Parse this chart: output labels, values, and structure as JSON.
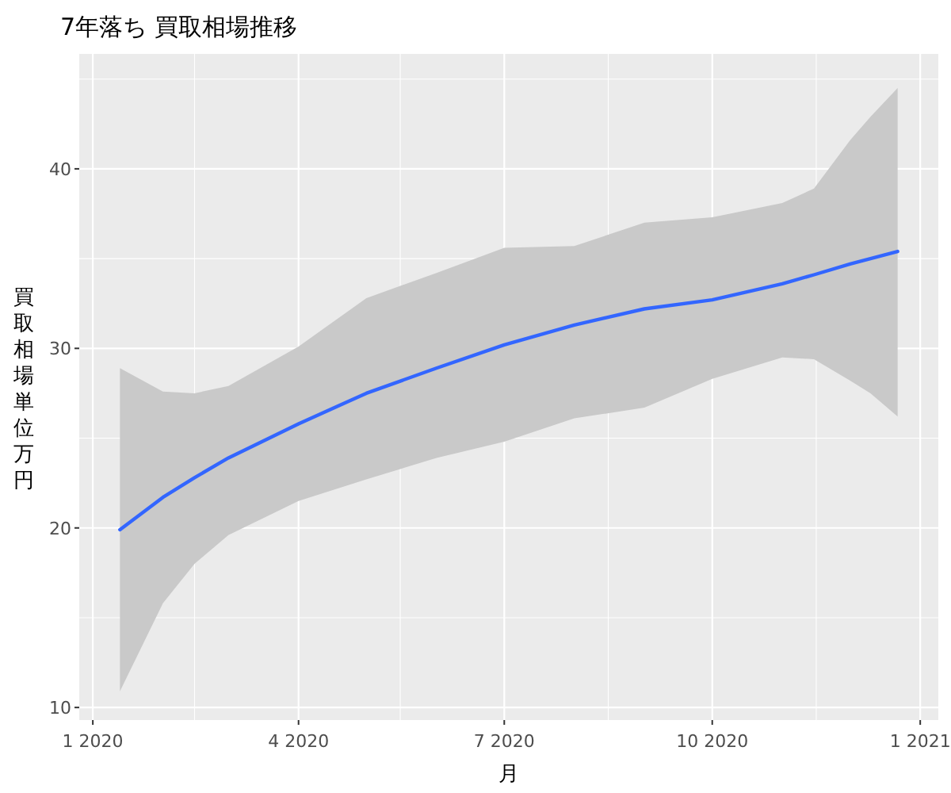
{
  "chart_data": {
    "type": "line",
    "title": "7年落ち 買取相場推移",
    "xlabel": "月",
    "ylabel": "買取相場単位万円",
    "xlim": [
      "2019-12-26",
      "2021-01-09"
    ],
    "ylim": [
      9.3,
      46.4
    ],
    "xticks": [
      {
        "value": "2020-01-01",
        "label": "1 2020"
      },
      {
        "value": "2020-02-15",
        "label": null
      },
      {
        "value": "2020-04-01",
        "label": "4 2020"
      },
      {
        "value": "2020-05-16",
        "label": null
      },
      {
        "value": "2020-07-01",
        "label": "7 2020"
      },
      {
        "value": "2020-08-16",
        "label": null
      },
      {
        "value": "2020-10-01",
        "label": "10 2020"
      },
      {
        "value": "2020-11-16",
        "label": null
      },
      {
        "value": "2021-01-01",
        "label": "1 2021"
      }
    ],
    "yticks": [
      10,
      {
        "value": 15,
        "label": null
      },
      20,
      {
        "value": 25,
        "label": null
      },
      30,
      {
        "value": 35,
        "label": null
      },
      40,
      {
        "value": 45,
        "label": null
      }
    ],
    "grid": true,
    "marker": "none",
    "line_style": "solid",
    "series": [
      {
        "color": "#3366ff",
        "x": [
          "2020-01-13",
          "2020-02-01",
          "2020-02-15",
          "2020-03-01",
          "2020-04-01",
          "2020-05-01",
          "2020-06-01",
          "2020-07-01",
          "2020-08-01",
          "2020-09-01",
          "2020-10-01",
          "2020-11-01",
          "2020-11-15",
          "2020-12-01",
          "2020-12-10",
          "2020-12-22"
        ],
        "values": [
          19.9,
          21.7,
          22.8,
          23.9,
          25.8,
          27.5,
          28.9,
          30.2,
          31.3,
          32.2,
          32.7,
          33.6,
          34.1,
          34.7,
          35.0,
          35.4
        ],
        "lower": [
          10.9,
          15.8,
          18.0,
          19.6,
          21.5,
          22.7,
          23.9,
          24.8,
          26.1,
          26.7,
          28.3,
          29.5,
          29.4,
          28.2,
          27.5,
          26.2
        ],
        "upper": [
          28.9,
          27.6,
          27.5,
          27.9,
          30.1,
          32.8,
          34.2,
          35.6,
          35.7,
          37.0,
          37.3,
          38.1,
          38.9,
          41.6,
          42.9,
          44.5
        ]
      }
    ]
  }
}
